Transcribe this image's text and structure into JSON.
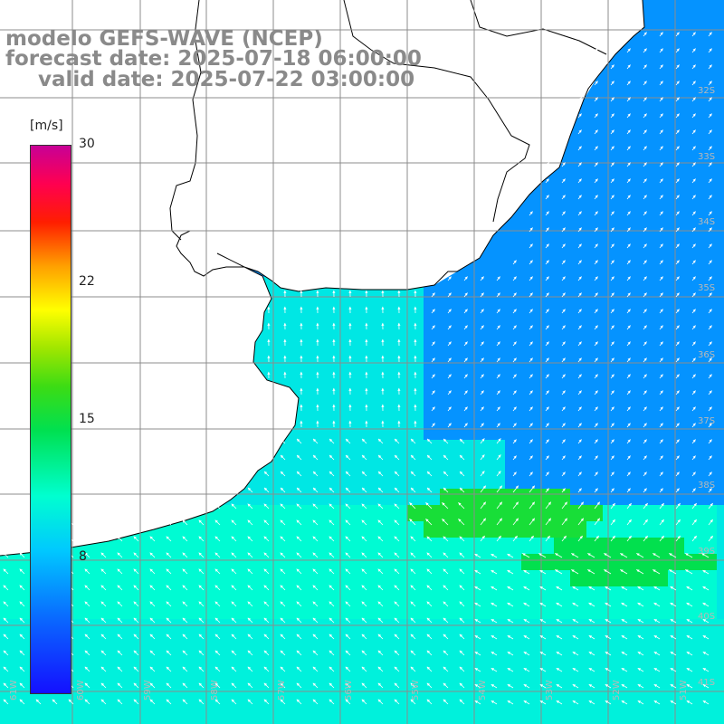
{
  "title": {
    "line1": "modelo GEFS-WAVE (NCEP)",
    "line2": "forecast date: 2025-07-18 06:00:00",
    "line3": "valid date: 2025-07-22 03:00:00"
  },
  "colorbar": {
    "units": "[m/s]",
    "ticks": [
      "30",
      "22",
      "15",
      "8"
    ],
    "tick_values": [
      30,
      22,
      15,
      8
    ],
    "range": [
      0,
      30
    ],
    "colors": [
      "#1410ff",
      "#0a64ff",
      "#00c8ff",
      "#00ffd0",
      "#00e050",
      "#3cdc14",
      "#a0e600",
      "#ffff00",
      "#ffa000",
      "#ff1e00",
      "#ff0050",
      "#c80096"
    ]
  },
  "latitude_labels": [
    "32S",
    "33S",
    "34S",
    "35S",
    "36S",
    "37S",
    "38S",
    "39S",
    "40S",
    "41S"
  ],
  "longitude_labels": [
    "61W",
    "60W",
    "59W",
    "58W",
    "57W",
    "56W",
    "55W",
    "54W",
    "53W",
    "52W",
    "51W"
  ],
  "colors": {
    "land": "#ffffff",
    "coastline": "#000000",
    "grid": "#8c8c8c",
    "title_text": "#8a8a8a",
    "arrows": "#ffffff"
  },
  "field_summary": {
    "variable": "wind speed / direction",
    "north_region_level": 4,
    "la_plata_plume_level": 7,
    "south_band_level": 8,
    "green_core_level": 12
  }
}
